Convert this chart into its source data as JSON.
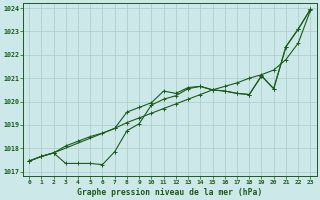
{
  "background_color": "#cce8e8",
  "grid_color": "#aacccc",
  "line_color": "#1a5c1a",
  "xlabel": "Graphe pression niveau de la mer (hPa)",
  "xlim": [
    -0.5,
    23.5
  ],
  "ylim": [
    1016.8,
    1024.2
  ],
  "yticks": [
    1017,
    1018,
    1019,
    1020,
    1021,
    1022,
    1023,
    1024
  ],
  "xticks": [
    0,
    1,
    2,
    3,
    4,
    5,
    6,
    7,
    8,
    9,
    10,
    11,
    12,
    13,
    14,
    15,
    16,
    17,
    18,
    19,
    20,
    21,
    22,
    23
  ],
  "line1_smooth": {
    "x": [
      0,
      1,
      2,
      3,
      4,
      5,
      6,
      7,
      8,
      9,
      10,
      11,
      12,
      13,
      14,
      15,
      16,
      17,
      18,
      19,
      20,
      21,
      22,
      23
    ],
    "y": [
      1017.45,
      1017.65,
      1017.8,
      1018.1,
      1018.3,
      1018.5,
      1018.65,
      1018.85,
      1019.1,
      1019.3,
      1019.5,
      1019.7,
      1019.9,
      1020.1,
      1020.3,
      1020.5,
      1020.65,
      1020.8,
      1021.0,
      1021.15,
      1021.35,
      1021.8,
      1022.5,
      1023.9
    ]
  },
  "line2_upper": {
    "x": [
      0,
      1,
      2,
      7,
      8,
      9,
      10,
      11,
      12,
      13,
      14,
      15,
      16,
      17,
      18,
      19,
      20,
      21,
      22,
      23
    ],
    "y": [
      1017.45,
      1017.65,
      1017.8,
      1018.85,
      1019.55,
      1019.75,
      1019.95,
      1020.45,
      1020.35,
      1020.6,
      1020.65,
      1020.5,
      1020.45,
      1020.35,
      1020.3,
      1021.1,
      1020.55,
      1022.35,
      1023.1,
      1023.95
    ]
  },
  "line3_dip": {
    "x": [
      0,
      1,
      2,
      3,
      4,
      5,
      6,
      7,
      8,
      9,
      10,
      11,
      12,
      13,
      14,
      15,
      16,
      17,
      18,
      19,
      20,
      21,
      22,
      23
    ],
    "y": [
      1017.45,
      1017.65,
      1017.8,
      1017.35,
      1017.35,
      1017.35,
      1017.3,
      1017.85,
      1018.75,
      1019.05,
      1019.85,
      1020.1,
      1020.25,
      1020.55,
      1020.65,
      1020.5,
      1020.45,
      1020.35,
      1020.3,
      1021.1,
      1020.55,
      1022.35,
      1023.1,
      1023.95
    ]
  }
}
